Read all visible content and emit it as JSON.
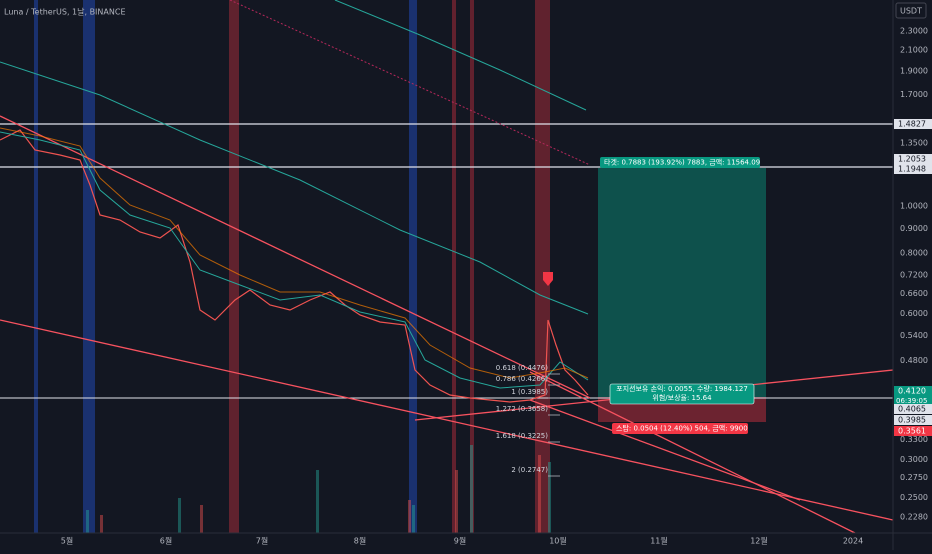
{
  "header": {
    "title": "Luna / TetherUS, 1날, BINANCE",
    "currency": "USDT"
  },
  "price_axis": {
    "labels": [
      "2.3000",
      "2.1000",
      "1.9000",
      "1.7000",
      "1.3500",
      "1.0000",
      "0.9000",
      "0.8000",
      "0.7200",
      "0.6600",
      "0.6000",
      "0.5400",
      "0.4800",
      "0.3300",
      "0.3000",
      "0.2750",
      "0.2500",
      "0.2280"
    ],
    "tags": [
      {
        "text": "1.4827",
        "style": "white"
      },
      {
        "text": "1.2053",
        "style": "white"
      },
      {
        "text": "1.1948",
        "style": "white"
      },
      {
        "text": "0.4120",
        "style": "green"
      },
      {
        "text": "0.4065",
        "style": "white"
      },
      {
        "text": "0.3985",
        "style": "white"
      },
      {
        "text": "0.3561",
        "style": "red"
      }
    ],
    "countdown": "06:39:05"
  },
  "time_axis": {
    "labels": [
      "5월",
      "6월",
      "7월",
      "8월",
      "9월",
      "10월",
      "11월",
      "12월",
      "2024"
    ]
  },
  "fibonacci": {
    "labels": [
      "0.618 (0.4476)",
      "0.786 (0.4266)",
      "1 (0.3985)",
      "1.272 (0.3658)",
      "1.618 (0.3225)",
      "2 (0.2747)"
    ]
  },
  "position": {
    "target": "타겟: 0.7883 (193.92%) 7883, 금액: 11564.09",
    "status": [
      "포지션보유 손익: 0.0055, 수량: 1984.127",
      "위험/보상율: 15.64"
    ],
    "stop": "스탑: 0.0504 (12.40%) 504, 금액: 9900"
  }
}
